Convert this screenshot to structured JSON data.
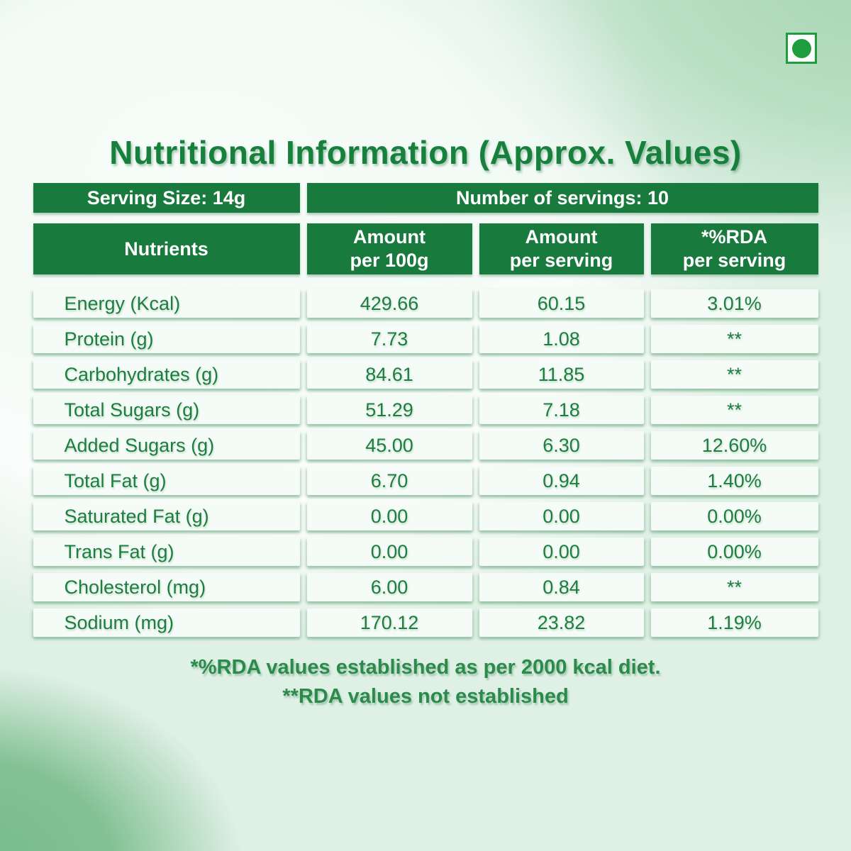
{
  "icons": {
    "veg_mark": "vegetarian-green-dot"
  },
  "page": {
    "title": "Nutritional Information (Approx. Values)"
  },
  "serving_info": {
    "serving_size": "Serving Size: 14g",
    "number_of_servings": "Number of servings: 10"
  },
  "table": {
    "headers": [
      {
        "line1": "Nutrients",
        "line2": ""
      },
      {
        "line1": "Amount",
        "line2": "per 100g"
      },
      {
        "line1": "Amount",
        "line2": "per serving"
      },
      {
        "line1": "*%RDA",
        "line2": "per serving"
      }
    ],
    "rows": [
      {
        "nutrient": "Energy (Kcal)",
        "per_100g": "429.66",
        "per_serving": "60.15",
        "rda_per_serving": "3.01%"
      },
      {
        "nutrient": "Protein (g)",
        "per_100g": "7.73",
        "per_serving": "1.08",
        "rda_per_serving": "**"
      },
      {
        "nutrient": "Carbohydrates (g)",
        "per_100g": "84.61",
        "per_serving": "11.85",
        "rda_per_serving": "**"
      },
      {
        "nutrient": "Total Sugars (g)",
        "per_100g": "51.29",
        "per_serving": "7.18",
        "rda_per_serving": "**"
      },
      {
        "nutrient": "Added Sugars (g)",
        "per_100g": "45.00",
        "per_serving": "6.30",
        "rda_per_serving": "12.60%"
      },
      {
        "nutrient": "Total Fat (g)",
        "per_100g": "6.70",
        "per_serving": "0.94",
        "rda_per_serving": "1.40%"
      },
      {
        "nutrient": "Saturated Fat (g)",
        "per_100g": "0.00",
        "per_serving": "0.00",
        "rda_per_serving": "0.00%"
      },
      {
        "nutrient": "Trans Fat (g)",
        "per_100g": "0.00",
        "per_serving": "0.00",
        "rda_per_serving": "0.00%"
      },
      {
        "nutrient": "Cholesterol (mg)",
        "per_100g": "6.00",
        "per_serving": "0.84",
        "rda_per_serving": "**"
      },
      {
        "nutrient": "Sodium (mg)",
        "per_100g": "170.12",
        "per_serving": "23.82",
        "rda_per_serving": "1.19%"
      }
    ]
  },
  "footnotes": {
    "line1": "*%RDA values established as per 2000 kcal diet.",
    "line2": "**RDA values not established"
  },
  "colors": {
    "header_green": "#187a3c",
    "text_green": "#1e7d40",
    "veg_mark_green": "#1e9e3e",
    "cell_background": "#f5fbf6"
  }
}
